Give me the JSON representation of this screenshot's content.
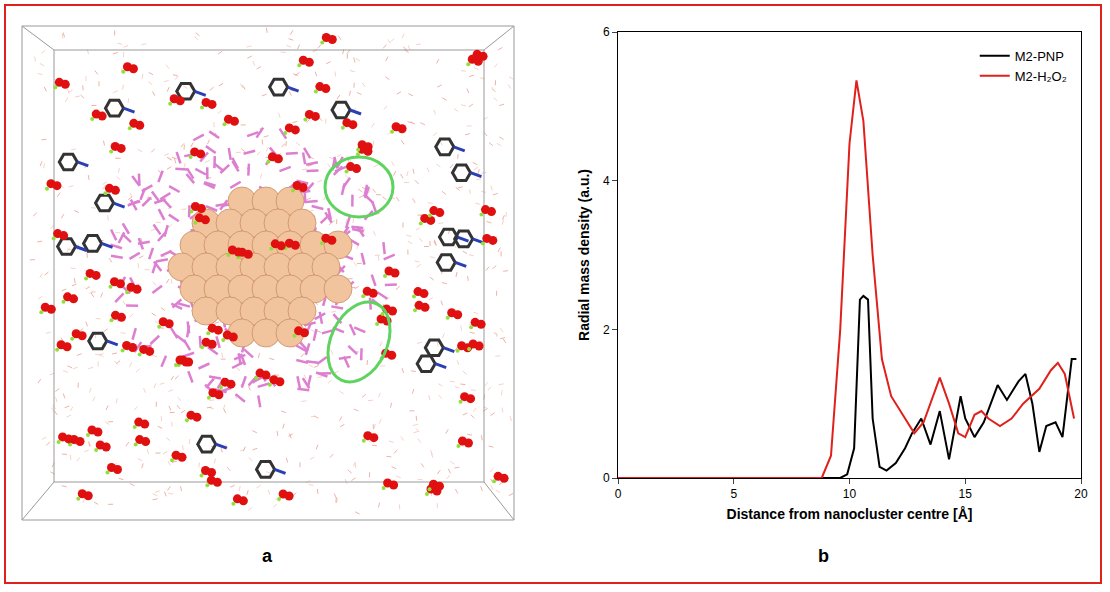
{
  "panel_labels": [
    "a",
    "b"
  ],
  "chart_data": {
    "type": "line",
    "x_label": "Distance from nanocluster centre [Å]",
    "y_label": "Radial mass density (a.u.)",
    "xlim": [
      0,
      20
    ],
    "xticks": [
      0,
      5,
      10,
      15,
      20
    ],
    "ylim": [
      0,
      6
    ],
    "yticks": [
      0,
      2,
      4,
      6
    ],
    "grid": false,
    "legend": "top-right",
    "series": [
      {
        "name": "M2-PNP",
        "color": "#000000",
        "x": [
          0,
          9.6,
          9.9,
          10.2,
          10.45,
          10.6,
          10.8,
          11.0,
          11.3,
          11.6,
          12.0,
          12.4,
          12.7,
          13.1,
          13.5,
          13.9,
          14.3,
          14.8,
          15.0,
          15.4,
          15.8,
          16.4,
          16.8,
          17.3,
          17.6,
          17.9,
          18.2,
          18.5,
          18.9,
          19.2,
          19.6,
          19.8
        ],
        "values": [
          0,
          0,
          0.05,
          0.4,
          2.4,
          2.45,
          2.4,
          0.8,
          0.15,
          0.1,
          0.2,
          0.4,
          0.6,
          0.8,
          0.45,
          0.9,
          0.25,
          1.1,
          0.8,
          0.55,
          0.75,
          1.25,
          1.05,
          1.3,
          1.4,
          1.0,
          0.35,
          0.7,
          0.75,
          0.55,
          1.6,
          1.6
        ]
      },
      {
        "name": "M2-H₂O₂",
        "color": "#e0201b",
        "x": [
          0,
          8.8,
          9.2,
          9.6,
          10.0,
          10.3,
          10.6,
          11.0,
          11.4,
          11.8,
          12.3,
          12.8,
          13.2,
          13.6,
          13.9,
          14.3,
          14.7,
          15.0,
          15.4,
          15.7,
          16.0,
          16.5,
          17.0,
          17.5,
          18.2,
          18.7,
          19.0,
          19.3,
          19.7
        ],
        "values": [
          0,
          0,
          0.3,
          2.0,
          4.5,
          5.35,
          4.8,
          3.0,
          1.6,
          1.1,
          0.85,
          0.6,
          0.75,
          1.1,
          1.35,
          1.0,
          0.6,
          0.55,
          0.85,
          0.9,
          0.8,
          0.7,
          0.8,
          1.0,
          1.2,
          1.45,
          1.55,
          1.4,
          0.8
        ]
      }
    ]
  }
}
